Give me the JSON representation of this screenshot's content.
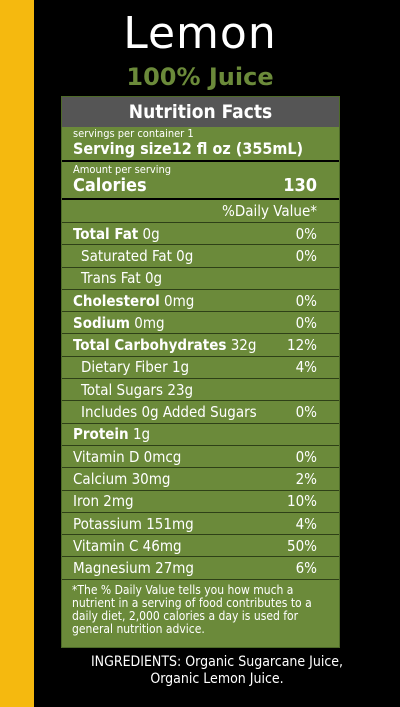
{
  "header": {
    "title": "Lemon",
    "subtitle": "100% Juice"
  },
  "label": {
    "heading": "Nutrition Facts",
    "servings_per_container": "servings per container 1",
    "serving_size_label": "Serving size",
    "serving_size_value": "12 fl oz (355mL)",
    "amount_per_serving": "Amount per serving",
    "calories_label": "Calories",
    "calories_value": "130",
    "daily_value_header": "%Daily Value*",
    "rows": [
      {
        "bold": "Total Fat",
        "amount": " 0g",
        "dv": "0%",
        "indent": false
      },
      {
        "bold": "",
        "amount": "Saturated Fat 0g",
        "dv": "0%",
        "indent": true
      },
      {
        "bold": "",
        "amount": "Trans Fat 0g",
        "dv": "",
        "indent": true
      },
      {
        "bold": "Cholesterol",
        "amount": " 0mg",
        "dv": "0%",
        "indent": false
      },
      {
        "bold": "Sodium",
        "amount": " 0mg",
        "dv": "0%",
        "indent": false
      },
      {
        "bold": "Total Carbohydrates",
        "amount": " 32g",
        "dv": "12%",
        "indent": false
      },
      {
        "bold": "",
        "amount": "Dietary Fiber 1g",
        "dv": "4%",
        "indent": true
      },
      {
        "bold": "",
        "amount": "Total Sugars 23g",
        "dv": "",
        "indent": true
      },
      {
        "bold": "",
        "amount": "Includes 0g Added Sugars",
        "dv": "0%",
        "indent": true
      },
      {
        "bold": "Protein",
        "amount": " 1g",
        "dv": "",
        "indent": false
      },
      {
        "bold": "",
        "amount": "Vitamin D 0mcg",
        "dv": "0%",
        "indent": false
      },
      {
        "bold": "",
        "amount": "Calcium 30mg",
        "dv": "2%",
        "indent": false
      },
      {
        "bold": "",
        "amount": "Iron 2mg",
        "dv": "10%",
        "indent": false
      },
      {
        "bold": "",
        "amount": "Potassium 151mg",
        "dv": "4%",
        "indent": false
      },
      {
        "bold": "",
        "amount": "Vitamin C 46mg",
        "dv": "50%",
        "indent": false
      },
      {
        "bold": "",
        "amount": "Magnesium 27mg",
        "dv": "6%",
        "indent": false
      }
    ],
    "footnote": "*The % Daily Value tells you how much a nutrient in a serving of food contributes to a daily diet, 2,000 calories a day is used for general nutrition advice."
  },
  "ingredients": {
    "line1": "INGREDIENTS:  Organic Sugarcane Juice,",
    "line2": "Organic  Lemon Juice."
  },
  "colors": {
    "accent_stripe": "#f5b90f",
    "panel_green": "#6b8a3a",
    "header_gray": "#555555",
    "background": "#000000"
  }
}
